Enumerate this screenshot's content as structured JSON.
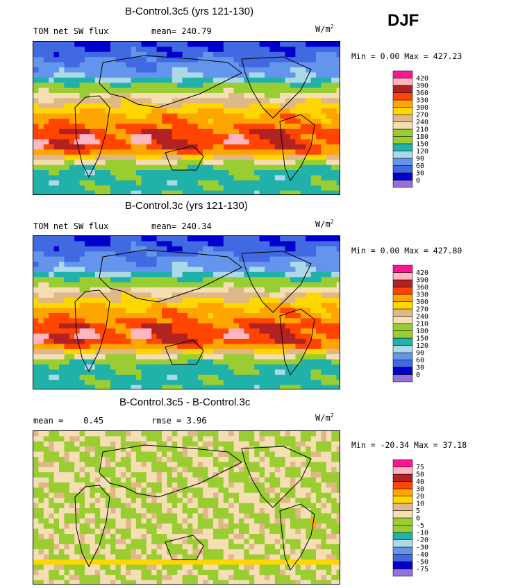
{
  "season": "DJF",
  "colors": [
    "#9370DB",
    "#0000CD",
    "#4169E1",
    "#6495ED",
    "#ADD8E6",
    "#20B2AA",
    "#9ACD32",
    "#9ACD32",
    "#F5DEB3",
    "#DEB887",
    "#FFD700",
    "#FFA500",
    "#FF4500",
    "#B22222",
    "#FFB6C1",
    "#FF1493"
  ],
  "chart_data": [
    {
      "type": "heatmap",
      "title": "B-Control.3c5 (yrs 121-130)",
      "left_label": "TOM net SW flux",
      "stat_label": "mean=",
      "stat_value": "240.79",
      "units_base": "W/m",
      "units_exp": "2",
      "min_label": "Min =",
      "min": "0.00",
      "max_label": "Max =",
      "max": "427.23",
      "levels": [
        "0",
        "30",
        "60",
        "90",
        "120",
        "150",
        "180",
        "210",
        "240",
        "270",
        "300",
        "330",
        "360",
        "390",
        "420"
      ],
      "map_style": "abs"
    },
    {
      "type": "heatmap",
      "title": "B-Control.3c (yrs 121-130)",
      "left_label": "TOM net SW flux",
      "stat_label": "mean=",
      "stat_value": "240.34",
      "units_base": "W/m",
      "units_exp": "2",
      "min_label": "Min =",
      "min": "0.00",
      "max_label": "Max =",
      "max": "427.80",
      "levels": [
        "0",
        "30",
        "60",
        "90",
        "120",
        "150",
        "180",
        "210",
        "240",
        "270",
        "300",
        "330",
        "360",
        "390",
        "420"
      ],
      "map_style": "abs"
    },
    {
      "type": "heatmap",
      "title": "B-Control.3c5 - B-Control.3c",
      "left_label": "mean =    0.45",
      "stat_label": "rmse =",
      "stat_value": "3.96",
      "units_base": "W/m",
      "units_exp": "2",
      "min_label": "Min =",
      "min": "-20.34",
      "max_label": "Max =",
      "max": "37.18",
      "levels": [
        "-75",
        "-50",
        "-40",
        "-30",
        "-20",
        "-10",
        "-5",
        "0",
        "5",
        "10",
        "20",
        "30",
        "40",
        "50",
        "75"
      ],
      "map_style": "diff"
    }
  ]
}
